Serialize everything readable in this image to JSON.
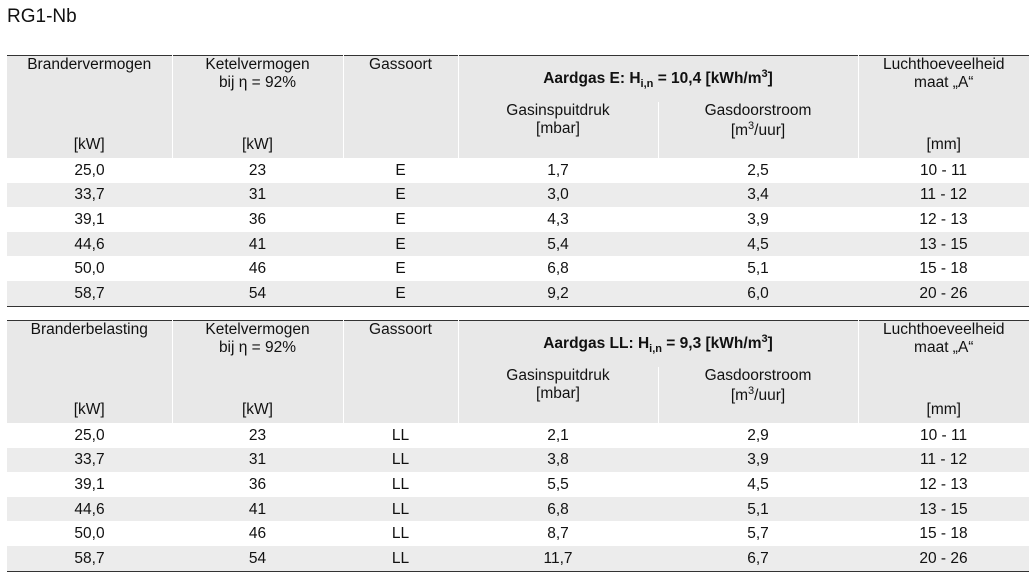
{
  "title": "RG1-Nb",
  "tables": [
    {
      "col1_label": "Brandervermogen",
      "col1_unit": "[kW]",
      "col2_label_line1": "Ketelvermogen",
      "col2_label_line2": "bij η = 92%",
      "col2_unit": "[kW]",
      "col3_label": "Gassoort",
      "group_prefix": "Aardgas E: H",
      "group_sub": "i,n",
      "group_suffix": " = 10,4 [kWh/m",
      "group_sup": "3",
      "group_end": "]",
      "col4_label": "Gasinspuitdruk",
      "col4_unit": "[mbar]",
      "col5_label": "Gasdoorstroom",
      "col5_unit_pre": "[m",
      "col5_unit_sup": "3",
      "col5_unit_post": "/uur]",
      "col6_label_line1": "Luchthoeveelheid",
      "col6_label_line2": "maat „A“",
      "col6_unit": "[mm]",
      "rows": [
        [
          "25,0",
          "23",
          "E",
          "1,7",
          "2,5",
          "10 - 11"
        ],
        [
          "33,7",
          "31",
          "E",
          "3,0",
          "3,4",
          "11 - 12"
        ],
        [
          "39,1",
          "36",
          "E",
          "4,3",
          "3,9",
          "12 - 13"
        ],
        [
          "44,6",
          "41",
          "E",
          "5,4",
          "4,5",
          "13 - 15"
        ],
        [
          "50,0",
          "46",
          "E",
          "6,8",
          "5,1",
          "15 - 18"
        ],
        [
          "58,7",
          "54",
          "E",
          "9,2",
          "6,0",
          "20 - 26"
        ]
      ]
    },
    {
      "col1_label": "Branderbelasting",
      "col1_unit": "[kW]",
      "col2_label_line1": "Ketelvermogen",
      "col2_label_line2": "bij η = 92%",
      "col2_unit": "[kW]",
      "col3_label": "Gassoort",
      "group_prefix": "Aardgas LL: H",
      "group_sub": "i,n",
      "group_suffix": " = 9,3 [kWh/m",
      "group_sup": "3",
      "group_end": "]",
      "col4_label": "Gasinspuitdruk",
      "col4_unit": "[mbar]",
      "col5_label": "Gasdoorstroom",
      "col5_unit_pre": "[m",
      "col5_unit_sup": "3",
      "col5_unit_post": "/uur]",
      "col6_label_line1": "Luchthoeveelheid",
      "col6_label_line2": "maat „A“",
      "col6_unit": "[mm]",
      "rows": [
        [
          "25,0",
          "23",
          "LL",
          "2,1",
          "2,9",
          "10 - 11"
        ],
        [
          "33,7",
          "31",
          "LL",
          "3,8",
          "3,9",
          "11 - 12"
        ],
        [
          "39,1",
          "36",
          "LL",
          "5,5",
          "4,5",
          "12 - 13"
        ],
        [
          "44,6",
          "41",
          "LL",
          "6,8",
          "5,1",
          "13 - 15"
        ],
        [
          "50,0",
          "46",
          "LL",
          "8,7",
          "5,7",
          "15 - 18"
        ],
        [
          "58,7",
          "54",
          "LL",
          "11,7",
          "6,7",
          "20 - 26"
        ]
      ]
    }
  ]
}
